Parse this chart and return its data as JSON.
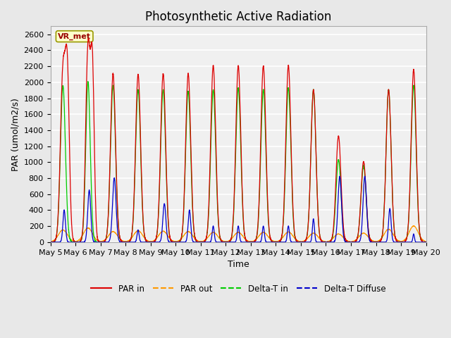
{
  "title": "Photosynthetic Active Radiation",
  "xlabel": "Time",
  "ylabel": "PAR (umol/m2/s)",
  "ylim": [
    0,
    2700
  ],
  "yticks": [
    0,
    200,
    400,
    600,
    800,
    1000,
    1200,
    1400,
    1600,
    1800,
    2000,
    2200,
    2400,
    2600
  ],
  "legend_labels": [
    "PAR in",
    "PAR out",
    "Delta-T in",
    "Delta-T Diffuse"
  ],
  "legend_colors": [
    "#dd0000",
    "#ff9900",
    "#00cc00",
    "#0000cc"
  ],
  "watermark_text": "VR_met",
  "watermark_facecolor": "#ffffcc",
  "watermark_edgecolor": "#999900",
  "watermark_textcolor": "#990000",
  "background_color": "#e8e8e8",
  "axes_facecolor": "#f0f0f0",
  "grid_color": "#ffffff",
  "n_days": 15,
  "day_start": 5,
  "pts_per_day": 288,
  "par_in_peaks": [
    2100,
    2420,
    2100,
    2090,
    2100,
    2100,
    2200,
    2200,
    2200,
    2200,
    1900,
    1320,
    1000,
    1900,
    2150
  ],
  "par_in_sigma": [
    0.1,
    0.09,
    0.1,
    0.1,
    0.1,
    0.1,
    0.1,
    0.1,
    0.1,
    0.1,
    0.1,
    0.1,
    0.1,
    0.1,
    0.1
  ],
  "par_in_double": [
    true,
    true,
    false,
    false,
    false,
    false,
    false,
    false,
    false,
    false,
    false,
    false,
    false,
    false,
    false
  ],
  "par_in_peak2": [
    1900,
    2060,
    0,
    0,
    0,
    0,
    0,
    0,
    0,
    0,
    0,
    0,
    0,
    0,
    0
  ],
  "par_in_offset2": [
    -0.18,
    -0.18,
    0,
    0,
    0,
    0,
    0,
    0,
    0,
    0,
    0,
    0,
    0,
    0,
    0
  ],
  "par_out_peaks": [
    150,
    175,
    130,
    140,
    135,
    130,
    120,
    120,
    120,
    125,
    110,
    100,
    110,
    160,
    200
  ],
  "par_out_sigma": [
    0.18,
    0.18,
    0.18,
    0.18,
    0.18,
    0.18,
    0.18,
    0.18,
    0.18,
    0.18,
    0.18,
    0.18,
    0.18,
    0.18,
    0.18
  ],
  "delta_t_in_peaks": [
    1950,
    2000,
    1950,
    1900,
    1900,
    1880,
    1900,
    1920,
    1900,
    1920,
    1900,
    1020,
    950,
    1900,
    1950
  ],
  "delta_t_in_sigma": [
    0.1,
    0.09,
    0.1,
    0.1,
    0.1,
    0.1,
    0.1,
    0.1,
    0.1,
    0.1,
    0.1,
    0.1,
    0.1,
    0.1,
    0.1
  ],
  "delta_t_diffuse_peaks": [
    400,
    650,
    800,
    150,
    480,
    400,
    200,
    200,
    200,
    200,
    290,
    820,
    820,
    420,
    100
  ],
  "delta_t_diffuse_sigma": [
    0.05,
    0.06,
    0.07,
    0.04,
    0.06,
    0.05,
    0.04,
    0.04,
    0.04,
    0.04,
    0.04,
    0.07,
    0.07,
    0.05,
    0.03
  ],
  "delta_t_diffuse_offset": [
    -0.05,
    -0.05,
    -0.05,
    0.0,
    -0.05,
    -0.05,
    0.0,
    0.0,
    0.0,
    0.0,
    0.0,
    -0.05,
    -0.05,
    -0.05,
    0.0
  ],
  "par_in_color": "#dd0000",
  "par_out_color": "#ff9900",
  "delta_t_in_color": "#00cc00",
  "delta_t_diffuse_color": "#0000cc",
  "title_fontsize": 12,
  "label_fontsize": 9,
  "tick_fontsize": 8
}
